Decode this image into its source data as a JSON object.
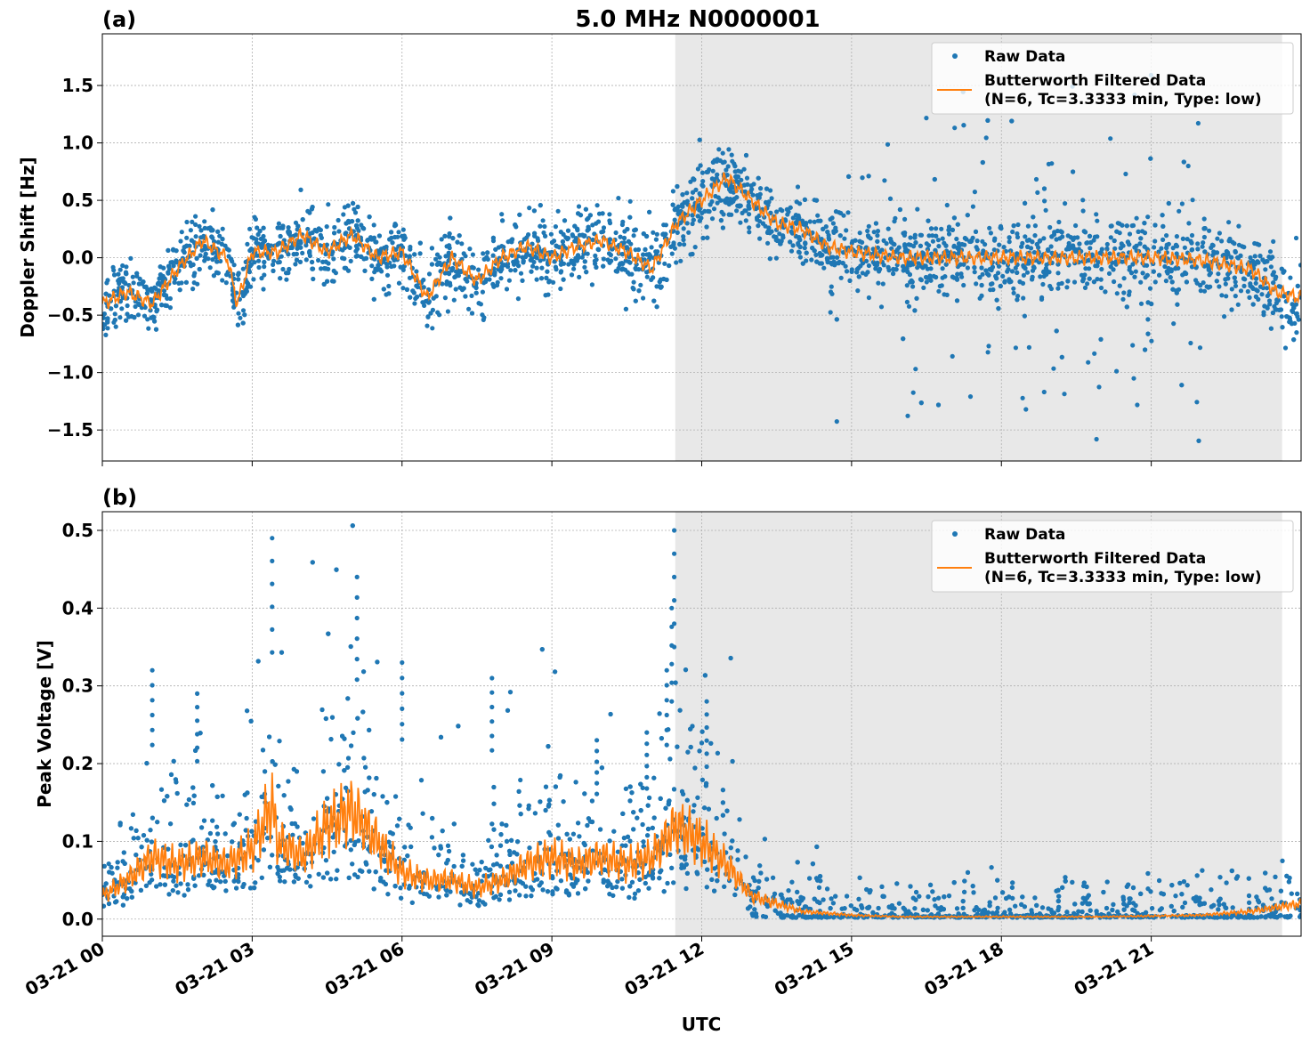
{
  "chart_data": [
    {
      "type": "scatter",
      "panel_label": "(a)",
      "title": "5.0 MHz N0000001",
      "xlabel": "",
      "ylabel": "Doppler Shift [Hz]",
      "xlim_hours": [
        0,
        24
      ],
      "ylim": [
        -1.77,
        1.95
      ],
      "yticks": [
        -1.5,
        -1.0,
        -0.5,
        0.0,
        0.5,
        1.0,
        1.5
      ],
      "ytick_labels": [
        "−1.5",
        "−1.0",
        "−0.5",
        "0.0",
        "0.5",
        "1.0",
        "1.5"
      ],
      "grid": true,
      "shaded_region_hours": [
        11.47,
        23.62
      ],
      "legend": {
        "placement": "top-right",
        "entries": [
          "Raw Data",
          "Butterworth Filtered Data",
          "(N=6, Tc=3.3333 min, Type: low)"
        ]
      },
      "series": [
        {
          "name": "Butterworth Filtered Data",
          "color": "#ff7f0e",
          "x": [
            0,
            0.5,
            1,
            1.5,
            2,
            2.5,
            2.7,
            3,
            3.5,
            4,
            4.5,
            5,
            5.5,
            6,
            6.5,
            7,
            7.5,
            8,
            8.5,
            9,
            9.5,
            10,
            10.5,
            11,
            11.5,
            12,
            12.5,
            13,
            13.5,
            14,
            14.5,
            15,
            16,
            17,
            18,
            19,
            20,
            21,
            22,
            23,
            23.5,
            24
          ],
          "y": [
            -0.4,
            -0.3,
            -0.4,
            -0.1,
            0.15,
            0.0,
            -0.4,
            0.05,
            0.05,
            0.2,
            0.05,
            0.2,
            0.0,
            0.05,
            -0.35,
            0.0,
            -0.2,
            0.0,
            0.1,
            0.0,
            0.1,
            0.15,
            0.05,
            -0.1,
            0.3,
            0.5,
            0.7,
            0.5,
            0.3,
            0.25,
            0.1,
            0.05,
            0.0,
            0.0,
            0.0,
            0.0,
            0.0,
            0.0,
            -0.02,
            -0.1,
            -0.3,
            -0.35
          ]
        },
        {
          "name": "Raw Data",
          "color": "#1f77b4",
          "spread_x": [
            0,
            11.5,
            14.5,
            22,
            24
          ],
          "spread": [
            0.25,
            0.35,
            0.3,
            0.35,
            0.4
          ],
          "outlier_range_hours": [
            14.5,
            22
          ],
          "outlier_amplitude": 1.3
        }
      ]
    },
    {
      "type": "scatter",
      "panel_label": "(b)",
      "title": "",
      "xlabel": "UTC",
      "ylabel": "Peak Voltage [V]",
      "xlim_hours": [
        0,
        24
      ],
      "ylim": [
        -0.022,
        0.524
      ],
      "yticks": [
        0.0,
        0.1,
        0.2,
        0.3,
        0.4,
        0.5
      ],
      "ytick_labels": [
        "0.0",
        "0.1",
        "0.2",
        "0.3",
        "0.4",
        "0.5"
      ],
      "xtick_labels": [
        "03-21 00",
        "03-21 03",
        "03-21 06",
        "03-21 09",
        "03-21 12",
        "03-21 15",
        "03-21 18",
        "03-21 21"
      ],
      "xticks_hours": [
        0,
        3,
        6,
        9,
        12,
        15,
        18,
        21
      ],
      "grid": true,
      "shaded_region_hours": [
        11.47,
        23.62
      ],
      "legend": {
        "placement": "top-right",
        "entries": [
          "Raw Data",
          "Butterworth Filtered Data",
          "(N=6, Tc=3.3333 min, Type: low)"
        ]
      },
      "series": [
        {
          "name": "Butterworth Filtered Data",
          "color": "#ff7f0e",
          "x": [
            0,
            0.5,
            1,
            1.5,
            2,
            2.5,
            3,
            3.4,
            3.5,
            4,
            4.5,
            5,
            5.5,
            6,
            6.5,
            7,
            7.5,
            8,
            8.5,
            9,
            9.5,
            10,
            10.5,
            11,
            11.5,
            12,
            12.5,
            13,
            13.5,
            14,
            15,
            16,
            20,
            22,
            23,
            24
          ],
          "y": [
            0.03,
            0.05,
            0.08,
            0.07,
            0.08,
            0.07,
            0.09,
            0.15,
            0.1,
            0.08,
            0.12,
            0.14,
            0.1,
            0.06,
            0.05,
            0.05,
            0.04,
            0.05,
            0.07,
            0.08,
            0.07,
            0.08,
            0.07,
            0.08,
            0.12,
            0.1,
            0.07,
            0.03,
            0.02,
            0.01,
            0.005,
            0.003,
            0.003,
            0.005,
            0.01,
            0.02
          ]
        },
        {
          "name": "Raw Data",
          "color": "#1f77b4",
          "peak_values": [
            0.32,
            0.29,
            0.49,
            0.44,
            0.33,
            0.31,
            0.23,
            0.24,
            0.32,
            0.4,
            0.5,
            0.28
          ]
        }
      ]
    }
  ]
}
